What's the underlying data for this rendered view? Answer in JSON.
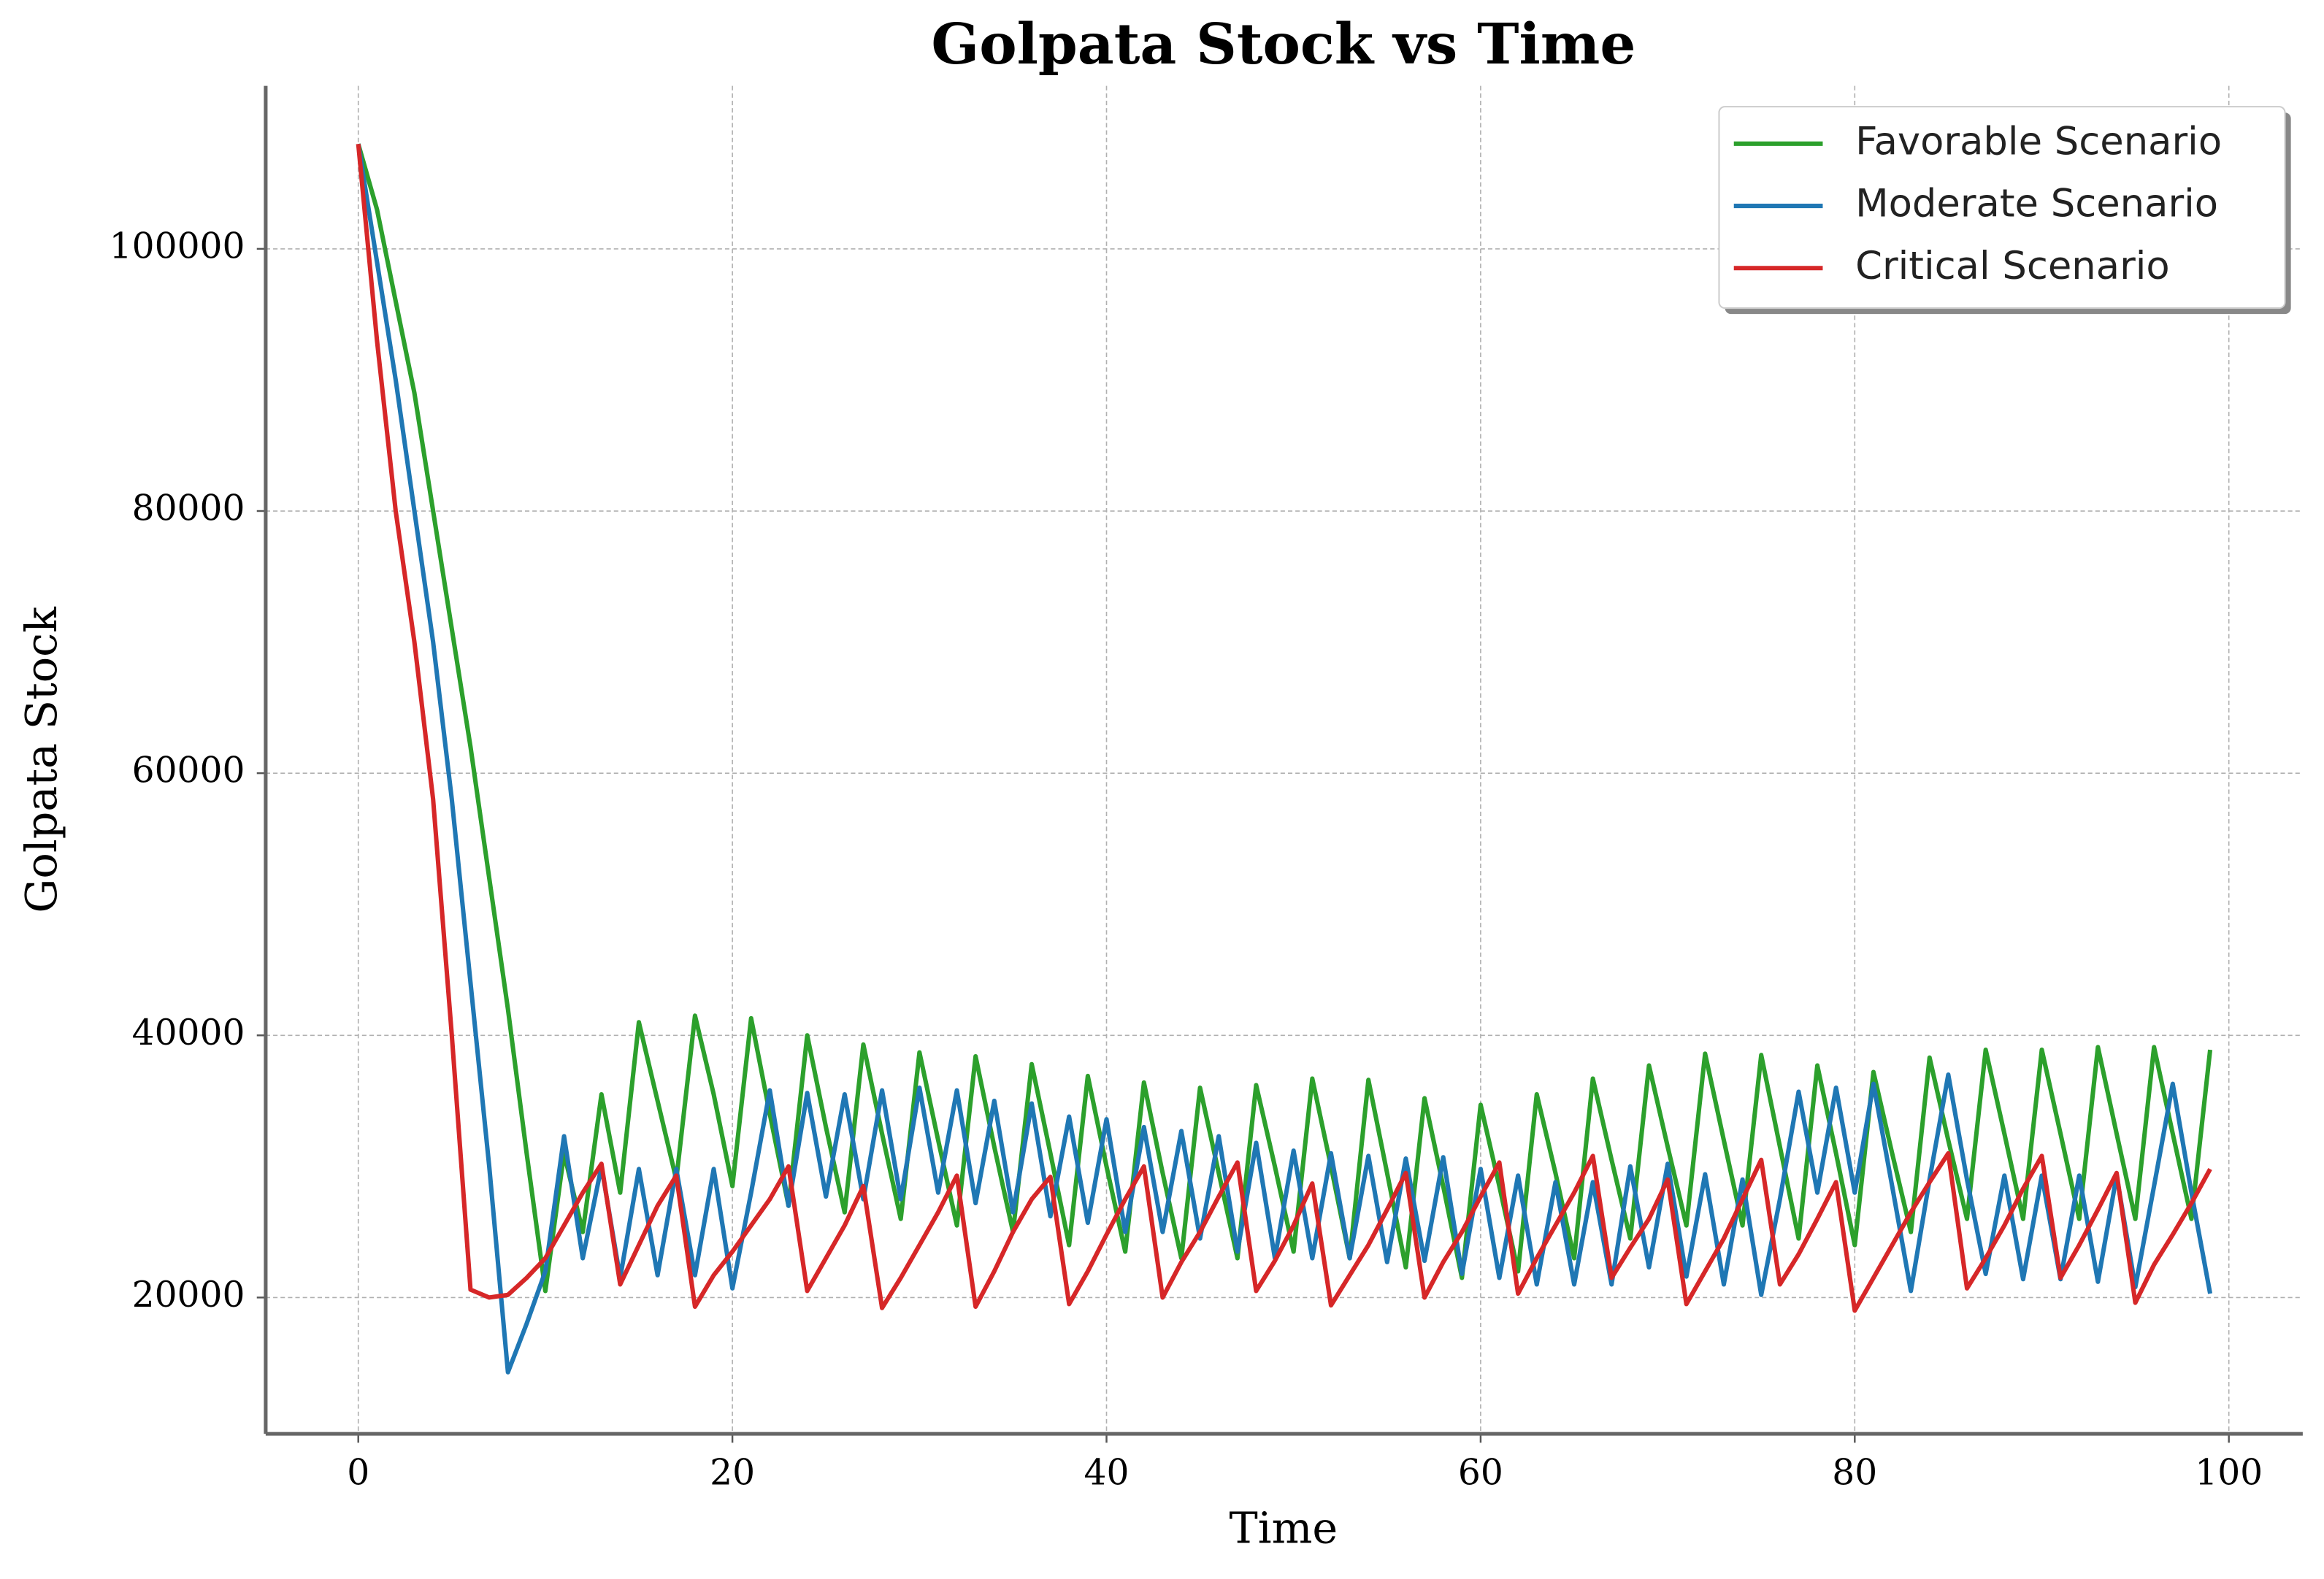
{
  "chart_data": {
    "type": "line",
    "title": "Golpata Stock vs Time",
    "xlabel": "Time",
    "ylabel": "Golpata Stock",
    "x": [
      0,
      1,
      2,
      3,
      4,
      5,
      6,
      7,
      8,
      9,
      10,
      11,
      12,
      13,
      14,
      15,
      16,
      17,
      18,
      19,
      20,
      21,
      22,
      23,
      24,
      25,
      26,
      27,
      28,
      29,
      30,
      31,
      32,
      33,
      34,
      35,
      36,
      37,
      38,
      39,
      40,
      41,
      42,
      43,
      44,
      45,
      46,
      47,
      48,
      49,
      50,
      51,
      52,
      53,
      54,
      55,
      56,
      57,
      58,
      59,
      60,
      61,
      62,
      63,
      64,
      65,
      66,
      67,
      68,
      69,
      70,
      71,
      72,
      73,
      74,
      75,
      76,
      77,
      78,
      79,
      80,
      81,
      82,
      83,
      84,
      85,
      86,
      87,
      88,
      89,
      90,
      91,
      92,
      93,
      94,
      95,
      96,
      97,
      98,
      99
    ],
    "series": [
      {
        "name": "Favorable Scenario",
        "color": "#2ca02c",
        "values": [
          108000,
          103000,
          96000,
          89000,
          80000,
          71000,
          62000,
          52000,
          42000,
          31000,
          20500,
          31000,
          25000,
          35500,
          28000,
          41000,
          35000,
          29000,
          41500,
          35500,
          28500,
          41300,
          34000,
          27000,
          40000,
          33000,
          26500,
          39300,
          32500,
          26000,
          38700,
          32000,
          25500,
          38400,
          31500,
          25000,
          37800,
          31000,
          24000,
          36900,
          30000,
          23500,
          36400,
          29500,
          23000,
          36000,
          29500,
          23000,
          36200,
          30000,
          23500,
          36700,
          30000,
          23000,
          36600,
          29500,
          22300,
          35200,
          28500,
          21500,
          34700,
          28500,
          22000,
          35500,
          29500,
          23000,
          36700,
          30500,
          24500,
          37700,
          31500,
          25500,
          38600,
          32000,
          25500,
          38500,
          31500,
          24500,
          37700,
          31000,
          24000,
          37200,
          31000,
          25000,
          38300,
          32000,
          26000,
          38900,
          32500,
          26000,
          38900,
          32500,
          26000,
          39100,
          32500,
          26000,
          39100,
          32500,
          26000,
          38900
        ]
      },
      {
        "name": "Moderate Scenario",
        "color": "#1f77b4",
        "values": [
          108000,
          99000,
          90000,
          80000,
          70000,
          58000,
          44000,
          30000,
          14300,
          18000,
          22000,
          32300,
          23000,
          30000,
          21500,
          29800,
          21700,
          29800,
          21700,
          29800,
          20700,
          28000,
          35800,
          27000,
          35600,
          27700,
          35500,
          27500,
          35800,
          27500,
          36000,
          28000,
          35800,
          27200,
          35000,
          26500,
          34800,
          26200,
          33800,
          25700,
          33600,
          25000,
          33000,
          25000,
          32700,
          24500,
          32300,
          23500,
          31800,
          23000,
          31200,
          23000,
          31000,
          23000,
          30800,
          22700,
          30600,
          22800,
          30700,
          21800,
          29800,
          21500,
          29300,
          21000,
          28800,
          21000,
          28800,
          21000,
          30000,
          22300,
          30200,
          21600,
          29400,
          21000,
          29000,
          20200,
          27500,
          35700,
          28000,
          36000,
          28000,
          36300,
          28500,
          20500,
          29000,
          37000,
          29000,
          21800,
          29300,
          21400,
          29300,
          21400,
          29300,
          21200,
          29300,
          20800,
          28500,
          36300,
          28000,
          20300
        ]
      },
      {
        "name": "Critical Scenario",
        "color": "#d62728",
        "values": [
          108000,
          93000,
          80000,
          70000,
          58000,
          40000,
          20600,
          20000,
          20200,
          21500,
          23000,
          25500,
          28000,
          30200,
          21000,
          24000,
          27000,
          29300,
          19300,
          21700,
          23500,
          25500,
          27500,
          30000,
          20500,
          23000,
          25500,
          28500,
          19200,
          21500,
          24000,
          26500,
          29300,
          19300,
          22000,
          25000,
          27500,
          29200,
          19500,
          22000,
          24800,
          27500,
          30000,
          20000,
          22700,
          25000,
          27700,
          30300,
          20500,
          22800,
          25500,
          28700,
          19400,
          21700,
          24000,
          26700,
          29500,
          20000,
          22700,
          25000,
          27700,
          30300,
          20300,
          23000,
          25500,
          28000,
          30800,
          21500,
          23800,
          26000,
          29000,
          19500,
          22000,
          24500,
          27500,
          30500,
          21000,
          23300,
          26000,
          28800,
          19000,
          21500,
          24000,
          26500,
          28800,
          31000,
          20700,
          23000,
          25500,
          28300,
          30800,
          21500,
          24000,
          26700,
          29500,
          19600,
          22500,
          24800,
          27200,
          29800
        ]
      }
    ],
    "xlim": [
      -4.95,
      103.95
    ],
    "ylim": [
      9600,
      112430
    ],
    "xticks": [
      0,
      20,
      40,
      60,
      80,
      100
    ],
    "yticks": [
      20000,
      40000,
      60000,
      80000,
      100000
    ],
    "grid": true,
    "legend": "upper right"
  }
}
